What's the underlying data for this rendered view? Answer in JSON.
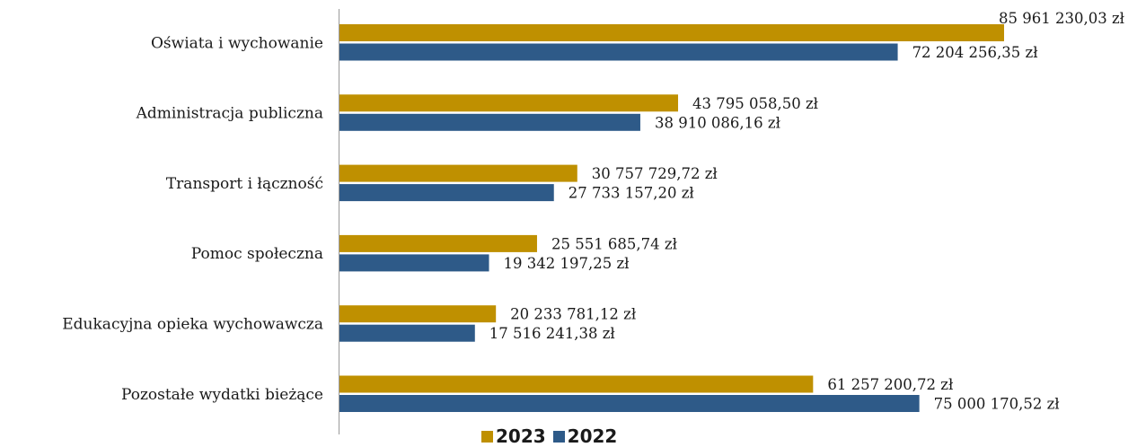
{
  "chart_data": {
    "type": "bar",
    "orientation": "horizontal",
    "categories": [
      "Oświata i wychowanie",
      "Administracja publiczna",
      "Transport i łączność",
      "Pomoc społeczna",
      "Edukacyjna opieka wychowawcza",
      "Pozostałe wydatki bieżące"
    ],
    "series": [
      {
        "name": "2023",
        "color": "#BF9000",
        "values": [
          85961230.03,
          43795058.5,
          30757729.72,
          25551685.74,
          20233781.12,
          61257200.72
        ],
        "labels": [
          "85 961 230,03 zł",
          "43 795 058,50 zł",
          "30 757 729,72 zł",
          "25 551 685,74 zł",
          "20 233 781,12 zł",
          "61 257 200,72 zł"
        ]
      },
      {
        "name": "2022",
        "color": "#2E5A88",
        "values": [
          72204256.35,
          38910086.16,
          27733157.2,
          19342197.25,
          17516241.38,
          75000170.52
        ],
        "labels": [
          "72 204 256,35 zł",
          "38 910 086,16 zł",
          "27 733 157,20 zł",
          "19 342 197,25 zł",
          "17 516 241,38 zł",
          "75 000 170,52 zł"
        ]
      }
    ],
    "xlim": [
      0,
      86000000
    ],
    "grid": false,
    "legend_position": "bottom"
  }
}
